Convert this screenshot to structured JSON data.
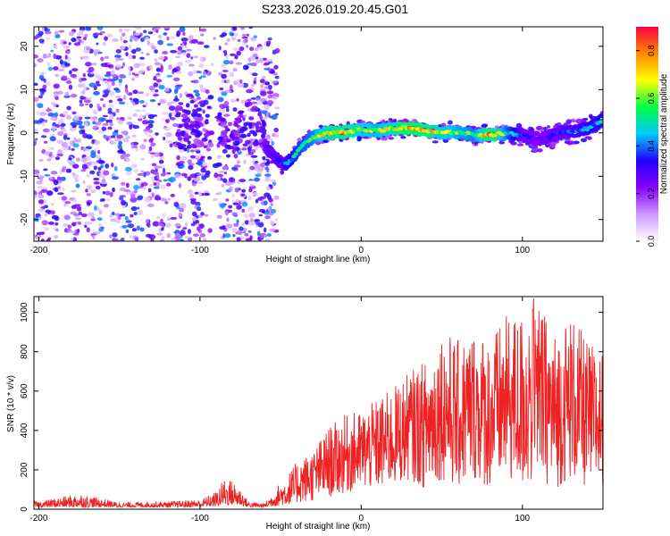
{
  "page_title": "S233.2026.019.20.45.G01",
  "colors": {
    "snr_line": "#ee2222",
    "axis": "#000000",
    "background": "#ffffff"
  },
  "chart_data": [
    {
      "type": "heatmap",
      "title": "S233.2026.019.20.45.G01",
      "xlabel": "Height of straight line (km)",
      "ylabel": "Frequency (Hz)",
      "xlim": [
        -203,
        150
      ],
      "ylim": [
        -25,
        24.5
      ],
      "x_ticks": [
        -200,
        -100,
        0,
        100
      ],
      "y_ticks": [
        -20,
        -10,
        0,
        10,
        20
      ],
      "colorbar": {
        "label": "Normalized spectral amplitude",
        "range": [
          0,
          0.9
        ],
        "ticks": [
          0.0,
          0.2,
          0.4,
          0.6,
          0.8
        ],
        "colors": [
          "#ffffff",
          "#cc99ff",
          "#8800ff",
          "#2200ff",
          "#00c8ff",
          "#00ff44",
          "#ffff00",
          "#ff8800",
          "#ff0044"
        ]
      },
      "ridge": {
        "description_points_x_km": [
          -63,
          -55,
          -48,
          -43,
          -38,
          -30,
          -22,
          -10,
          0,
          10,
          20,
          30,
          40,
          50,
          60,
          70,
          80,
          90,
          100,
          110,
          120,
          130,
          140,
          150
        ],
        "frequency_hz": [
          -1.5,
          -5.0,
          -7.5,
          -6.0,
          -3.5,
          -1.0,
          0.0,
          0.2,
          0.8,
          0.5,
          1.0,
          1.2,
          0.5,
          0.0,
          0.2,
          -0.5,
          -0.5,
          0.0,
          -0.5,
          -1.5,
          -0.5,
          0.3,
          1.0,
          3.0
        ],
        "peak_amplitude": [
          0.25,
          0.35,
          0.4,
          0.5,
          0.55,
          0.6,
          0.75,
          0.8,
          0.7,
          0.65,
          0.75,
          0.85,
          0.8,
          0.7,
          0.65,
          0.6,
          0.85,
          0.6,
          0.35,
          0.3,
          0.35,
          0.4,
          0.45,
          0.5
        ]
      },
      "noise_region_km": [
        -203,
        -60
      ]
    },
    {
      "type": "line",
      "xlabel": "Height of straight line (km)",
      "ylabel": "SNR (10 * v/v)",
      "xlim": [
        -203,
        150
      ],
      "ylim": [
        0,
        1080
      ],
      "x_ticks": [
        -200,
        -100,
        0,
        100
      ],
      "y_ticks": [
        0,
        200,
        400,
        600,
        800,
        1000
      ],
      "series": [
        {
          "name": "SNR",
          "x": [
            -200,
            -175,
            -150,
            -120,
            -100,
            -90,
            -85,
            -80,
            -75,
            -70,
            -60,
            -50,
            -40,
            -30,
            -20,
            -10,
            0,
            10,
            20,
            30,
            40,
            50,
            60,
            70,
            80,
            90,
            100,
            110,
            120,
            130,
            140,
            150
          ],
          "envelope_max": [
            40,
            80,
            35,
            40,
            50,
            90,
            160,
            150,
            110,
            40,
            30,
            140,
            240,
            300,
            420,
            480,
            500,
            560,
            620,
            700,
            760,
            920,
            860,
            920,
            880,
            980,
            1000,
            1060,
            900,
            1000,
            860,
            800
          ],
          "envelope_min": [
            10,
            10,
            10,
            10,
            10,
            15,
            20,
            20,
            20,
            10,
            10,
            20,
            30,
            40,
            60,
            80,
            100,
            100,
            120,
            150,
            100,
            150,
            100,
            150,
            100,
            150,
            100,
            150,
            100,
            150,
            100,
            120
          ]
        }
      ]
    }
  ]
}
